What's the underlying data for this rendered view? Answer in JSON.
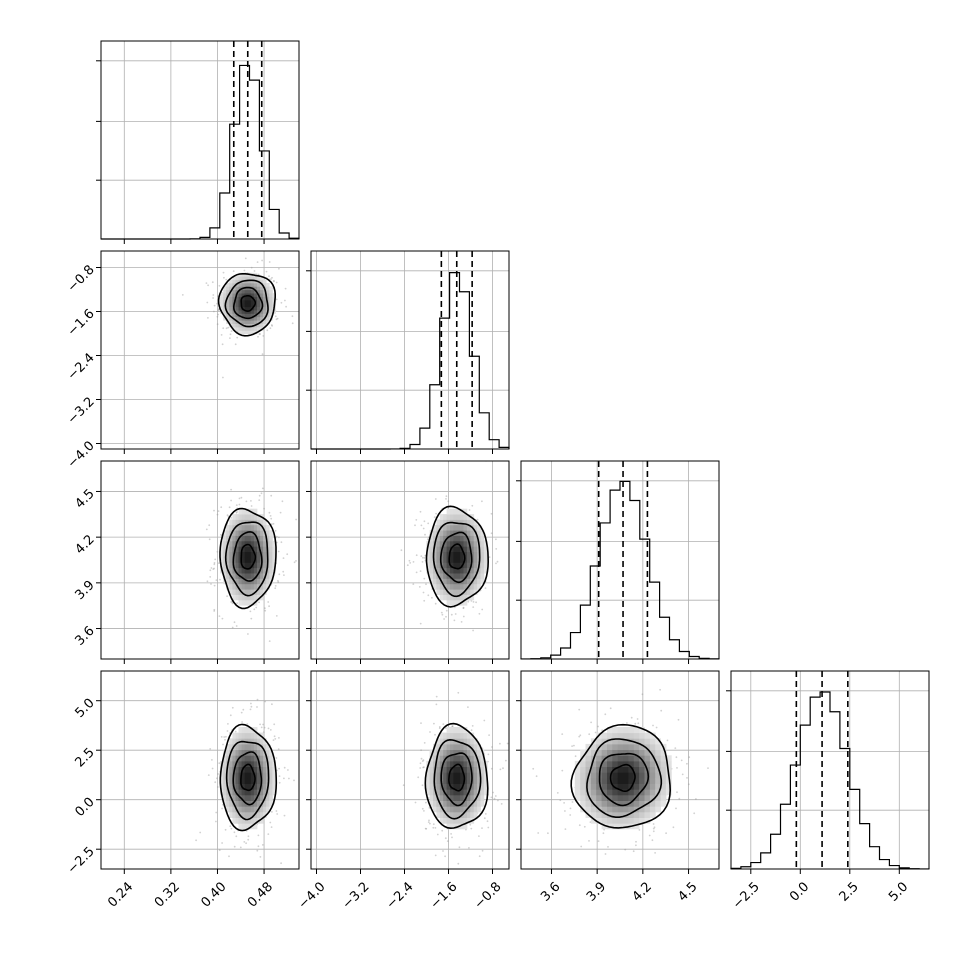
{
  "chart_data": {
    "type": "corner",
    "parameters": [
      {
        "mean": 0.452,
        "sd": 0.024,
        "range": [
          0.2,
          0.54
        ],
        "ticks": [
          0.24,
          0.32,
          0.4,
          0.48
        ],
        "tick_labels": [
          "0.24",
          "0.32",
          "0.40",
          "0.48"
        ],
        "quantiles": [
          0.428,
          0.452,
          0.476
        ]
      },
      {
        "mean": -1.45,
        "sd": 0.28,
        "range": [
          -4.1,
          -0.5
        ],
        "ticks": [
          -4.0,
          -3.2,
          -2.4,
          -1.6,
          -0.8
        ],
        "tick_labels": [
          "−4.0",
          "−3.2",
          "−2.4",
          "−1.6",
          "−0.8"
        ],
        "quantiles": [
          -1.73,
          -1.45,
          -1.17
        ]
      },
      {
        "mean": 4.07,
        "sd": 0.16,
        "range": [
          3.4,
          4.7
        ],
        "ticks": [
          3.6,
          3.9,
          4.2,
          4.5
        ],
        "tick_labels": [
          "3.6",
          "3.9",
          "4.2",
          "4.5"
        ],
        "quantiles": [
          3.91,
          4.07,
          4.23
        ]
      },
      {
        "mean": 1.1,
        "sd": 1.3,
        "range": [
          -3.5,
          6.5
        ],
        "ticks": [
          -2.5,
          0.0,
          2.5,
          5.0
        ],
        "tick_labels": [
          "−2.5",
          "0.0",
          "2.5",
          "5.0"
        ],
        "quantiles": [
          -0.2,
          1.1,
          2.4
        ]
      }
    ],
    "correlations": [
      [
        1.0,
        0.0,
        0.0,
        0.0
      ],
      [
        0.0,
        1.0,
        0.0,
        0.0
      ],
      [
        0.0,
        0.0,
        1.0,
        0.05
      ],
      [
        0.0,
        0.0,
        0.05,
        1.0
      ]
    ],
    "hist_bins": 20,
    "contour_levels_sigma": [
      0.5,
      1.0,
      1.5,
      2.0
    ],
    "grid": true,
    "x_tick_label_rotation": 45,
    "y_tick_label_rotation": 45
  }
}
